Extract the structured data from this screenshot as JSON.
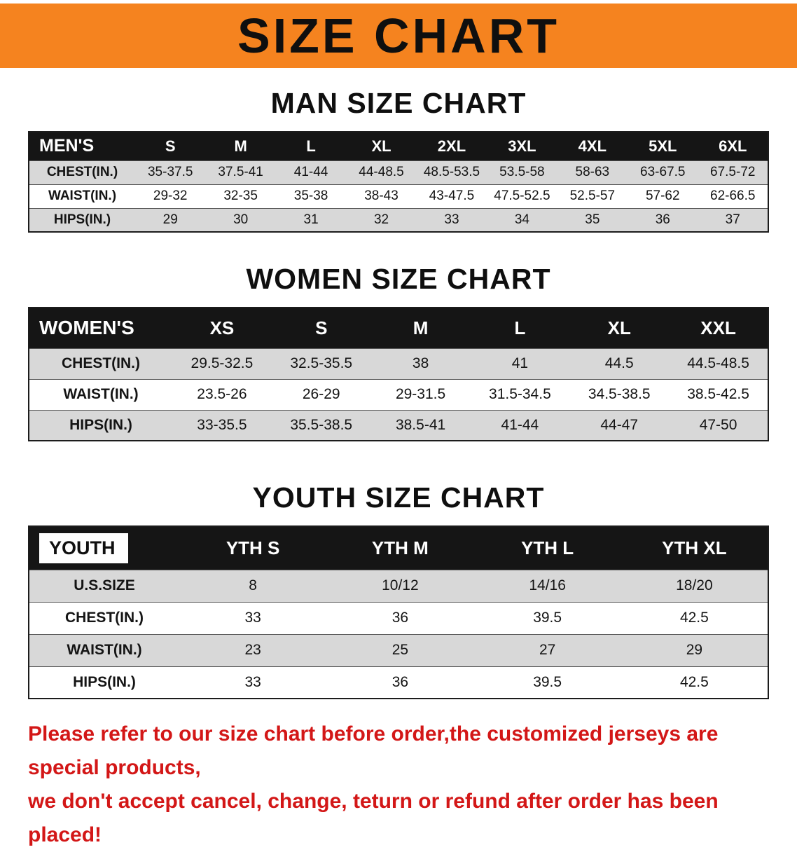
{
  "banner": {
    "title": "SIZE CHART"
  },
  "colors": {
    "banner_orange": "#F5831F",
    "header_black": "#151515",
    "stripe_gray": "#D8D8D8",
    "disclaimer_red": "#D31717"
  },
  "sections": [
    {
      "heading": "MAN SIZE CHART",
      "table": {
        "header": [
          "MEN'S",
          "S",
          "M",
          "L",
          "XL",
          "2XL",
          "3XL",
          "4XL",
          "5XL",
          "6XL"
        ],
        "rows": [
          [
            "CHEST(IN.)",
            "35-37.5",
            "37.5-41",
            "41-44",
            "44-48.5",
            "48.5-53.5",
            "53.5-58",
            "58-63",
            "63-67.5",
            "67.5-72"
          ],
          [
            "WAIST(IN.)",
            "29-32",
            "32-35",
            "35-38",
            "38-43",
            "43-47.5",
            "47.5-52.5",
            "52.5-57",
            "57-62",
            "62-66.5"
          ],
          [
            "HIPS(IN.)",
            "29",
            "30",
            "31",
            "32",
            "33",
            "34",
            "35",
            "36",
            "37"
          ]
        ]
      }
    },
    {
      "heading": "WOMEN SIZE CHART",
      "table": {
        "header": [
          "WOMEN'S",
          "XS",
          "S",
          "M",
          "L",
          "XL",
          "XXL"
        ],
        "rows": [
          [
            "CHEST(IN.)",
            "29.5-32.5",
            "32.5-35.5",
            "38",
            "41",
            "44.5",
            "44.5-48.5"
          ],
          [
            "WAIST(IN.)",
            "23.5-26",
            "26-29",
            "29-31.5",
            "31.5-34.5",
            "34.5-38.5",
            "38.5-42.5"
          ],
          [
            "HIPS(IN.)",
            "33-35.5",
            "35.5-38.5",
            "38.5-41",
            "41-44",
            "44-47",
            "47-50"
          ]
        ]
      }
    },
    {
      "heading": "YOUTH SIZE CHART",
      "table": {
        "header": [
          "YOUTH",
          "YTH S",
          "YTH M",
          "YTH L",
          "YTH XL"
        ],
        "rows": [
          [
            "U.S.SIZE",
            "8",
            "10/12",
            "14/16",
            "18/20"
          ],
          [
            "CHEST(IN.)",
            "33",
            "36",
            "39.5",
            "42.5"
          ],
          [
            "WAIST(IN.)",
            "23",
            "25",
            "27",
            "29"
          ],
          [
            "HIPS(IN.)",
            "33",
            "36",
            "39.5",
            "42.5"
          ]
        ]
      }
    }
  ],
  "disclaimer": {
    "line1": "Please refer to our size chart before order,the customized jerseys are special products,",
    "line2": "we don't accept cancel, change, teturn or refund after order has been placed!"
  }
}
